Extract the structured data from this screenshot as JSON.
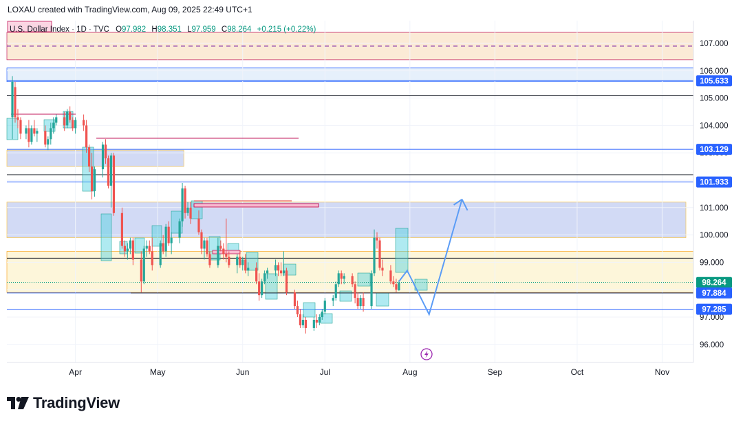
{
  "header": {
    "creator_text": "LOXAU created with TradingView.com, Aug 09, 2025 22:49 UTC+1"
  },
  "legend": {
    "symbol": "U.S. Dollar Index · 1D · TVC",
    "open_label": "O",
    "open": "97.982",
    "high_label": "H",
    "high": "98.351",
    "low_label": "L",
    "low": "97.959",
    "close_label": "C",
    "close": "98.264",
    "change": "+0.215 (+0.22%)"
  },
  "footer": {
    "brand": "TradingView"
  },
  "colors": {
    "up": "#26a69a",
    "down": "#ef5350",
    "zone_blue": "#cdd6f4",
    "zone_yellow": "#fdf5d6",
    "zone_peach": "#fbe8d2",
    "tag_green": "#089981",
    "tag_blue": "#2962ff",
    "arrow": "#5b9cf6"
  },
  "chart_data": {
    "type": "candlestick",
    "title": "U.S. Dollar Index · 1D · TVC",
    "timeframe": "1D",
    "ylim": [
      95.3,
      107.6
    ],
    "y_ticks": [
      "96.000",
      "97.000",
      "98.000",
      "99.000",
      "100.000",
      "101.000",
      "102.000",
      "103.000",
      "104.000",
      "105.000",
      "106.000",
      "107.000"
    ],
    "x_ticks": [
      {
        "label": "Apr",
        "day": 23
      },
      {
        "label": "May",
        "day": 53
      },
      {
        "label": "Jun",
        "day": 84
      },
      {
        "label": "Jul",
        "day": 114
      },
      {
        "label": "Aug",
        "day": 145
      },
      {
        "label": "Sep",
        "day": 176
      },
      {
        "label": "Oct",
        "day": 206
      },
      {
        "label": "Nov",
        "day": 237
      }
    ],
    "candles": [
      {
        "day": 0,
        "o": 104.3,
        "h": 105.8,
        "l": 103.5,
        "c": 105.6
      },
      {
        "day": 1,
        "o": 105.4,
        "h": 105.6,
        "l": 104.1,
        "c": 104.3
      },
      {
        "day": 2,
        "o": 104.3,
        "h": 104.6,
        "l": 103.9,
        "c": 104.2
      },
      {
        "day": 3,
        "o": 104.2,
        "h": 104.3,
        "l": 103.5,
        "c": 103.7
      },
      {
        "day": 5,
        "o": 103.7,
        "h": 104.0,
        "l": 103.5,
        "c": 103.9
      },
      {
        "day": 6,
        "o": 103.9,
        "h": 104.2,
        "l": 103.2,
        "c": 103.4
      },
      {
        "day": 7,
        "o": 103.4,
        "h": 104.0,
        "l": 103.3,
        "c": 103.9
      },
      {
        "day": 8,
        "o": 103.9,
        "h": 104.2,
        "l": 103.6,
        "c": 103.7
      },
      {
        "day": 9,
        "o": 103.7,
        "h": 103.9,
        "l": 103.4,
        "c": 103.8
      },
      {
        "day": 12,
        "o": 103.8,
        "h": 104.0,
        "l": 103.2,
        "c": 103.3
      },
      {
        "day": 13,
        "o": 103.3,
        "h": 103.6,
        "l": 103.1,
        "c": 103.5
      },
      {
        "day": 14,
        "o": 103.5,
        "h": 104.1,
        "l": 103.3,
        "c": 103.9
      },
      {
        "day": 15,
        "o": 103.9,
        "h": 104.3,
        "l": 103.7,
        "c": 104.1
      },
      {
        "day": 16,
        "o": 104.1,
        "h": 104.4,
        "l": 104.0,
        "c": 104.3
      },
      {
        "day": 19,
        "o": 104.3,
        "h": 104.5,
        "l": 103.8,
        "c": 104.0
      },
      {
        "day": 20,
        "o": 104.0,
        "h": 104.6,
        "l": 103.9,
        "c": 104.5
      },
      {
        "day": 21,
        "o": 104.5,
        "h": 104.7,
        "l": 104.1,
        "c": 104.2
      },
      {
        "day": 22,
        "o": 104.2,
        "h": 104.3,
        "l": 103.8,
        "c": 103.9
      },
      {
        "day": 23,
        "o": 103.9,
        "h": 104.3,
        "l": 103.7,
        "c": 104.2
      },
      {
        "day": 26,
        "o": 104.2,
        "h": 104.4,
        "l": 103.8,
        "c": 104.0
      },
      {
        "day": 27,
        "o": 104.0,
        "h": 104.2,
        "l": 103.0,
        "c": 103.2
      },
      {
        "day": 28,
        "o": 103.2,
        "h": 103.3,
        "l": 102.3,
        "c": 102.5
      },
      {
        "day": 29,
        "o": 102.5,
        "h": 103.0,
        "l": 101.3,
        "c": 101.6
      },
      {
        "day": 30,
        "o": 101.6,
        "h": 102.5,
        "l": 101.4,
        "c": 102.4
      },
      {
        "day": 33,
        "o": 102.4,
        "h": 103.4,
        "l": 102.1,
        "c": 103.3
      },
      {
        "day": 34,
        "o": 103.3,
        "h": 103.5,
        "l": 102.6,
        "c": 102.8
      },
      {
        "day": 35,
        "o": 102.8,
        "h": 102.9,
        "l": 101.7,
        "c": 101.8
      },
      {
        "day": 36,
        "o": 101.8,
        "h": 103.0,
        "l": 101.0,
        "c": 102.9
      },
      {
        "day": 37,
        "o": 102.9,
        "h": 103.0,
        "l": 100.7,
        "c": 100.8
      },
      {
        "day": 40,
        "o": 100.8,
        "h": 101.0,
        "l": 99.5,
        "c": 99.6
      },
      {
        "day": 41,
        "o": 99.6,
        "h": 99.8,
        "l": 99.2,
        "c": 99.4
      },
      {
        "day": 42,
        "o": 99.4,
        "h": 99.7,
        "l": 99.1,
        "c": 99.5
      },
      {
        "day": 43,
        "o": 99.5,
        "h": 99.9,
        "l": 99.3,
        "c": 99.8
      },
      {
        "day": 44,
        "o": 99.8,
        "h": 99.9,
        "l": 98.9,
        "c": 99.1
      },
      {
        "day": 47,
        "o": 99.1,
        "h": 99.4,
        "l": 97.9,
        "c": 98.3
      },
      {
        "day": 48,
        "o": 98.3,
        "h": 99.6,
        "l": 98.2,
        "c": 99.5
      },
      {
        "day": 49,
        "o": 99.5,
        "h": 99.8,
        "l": 99.2,
        "c": 99.6
      },
      {
        "day": 50,
        "o": 99.6,
        "h": 99.8,
        "l": 99.3,
        "c": 99.4
      },
      {
        "day": 51,
        "o": 99.4,
        "h": 99.9,
        "l": 98.7,
        "c": 98.9
      },
      {
        "day": 54,
        "o": 98.9,
        "h": 99.8,
        "l": 98.8,
        "c": 99.7
      },
      {
        "day": 55,
        "o": 99.7,
        "h": 100.0,
        "l": 99.3,
        "c": 99.4
      },
      {
        "day": 56,
        "o": 99.4,
        "h": 100.4,
        "l": 99.2,
        "c": 100.3
      },
      {
        "day": 57,
        "o": 100.3,
        "h": 100.5,
        "l": 99.6,
        "c": 99.7
      },
      {
        "day": 58,
        "o": 99.7,
        "h": 100.1,
        "l": 99.3,
        "c": 99.9
      },
      {
        "day": 61,
        "o": 99.9,
        "h": 100.6,
        "l": 99.7,
        "c": 100.5
      },
      {
        "day": 62,
        "o": 100.5,
        "h": 101.9,
        "l": 100.3,
        "c": 101.7
      },
      {
        "day": 63,
        "o": 101.7,
        "h": 101.8,
        "l": 100.6,
        "c": 100.8
      },
      {
        "day": 64,
        "o": 100.8,
        "h": 101.2,
        "l": 100.7,
        "c": 101.0
      },
      {
        "day": 65,
        "o": 101.0,
        "h": 101.2,
        "l": 100.4,
        "c": 100.6
      },
      {
        "day": 68,
        "o": 100.6,
        "h": 100.9,
        "l": 100.0,
        "c": 100.1
      },
      {
        "day": 69,
        "o": 100.1,
        "h": 100.2,
        "l": 99.3,
        "c": 99.5
      },
      {
        "day": 70,
        "o": 99.5,
        "h": 99.9,
        "l": 99.1,
        "c": 99.8
      },
      {
        "day": 71,
        "o": 99.8,
        "h": 99.9,
        "l": 99.2,
        "c": 99.3
      },
      {
        "day": 72,
        "o": 99.3,
        "h": 99.4,
        "l": 98.8,
        "c": 98.9
      },
      {
        "day": 75,
        "o": 98.9,
        "h": 99.9,
        "l": 98.8,
        "c": 99.6
      },
      {
        "day": 76,
        "o": 99.6,
        "h": 99.8,
        "l": 99.4,
        "c": 99.5
      },
      {
        "day": 77,
        "o": 99.5,
        "h": 99.7,
        "l": 99.1,
        "c": 99.3
      },
      {
        "day": 78,
        "o": 99.3,
        "h": 100.6,
        "l": 99.0,
        "c": 99.2
      },
      {
        "day": 79,
        "o": 99.2,
        "h": 99.4,
        "l": 98.8,
        "c": 98.9
      },
      {
        "day": 82,
        "o": 98.9,
        "h": 99.3,
        "l": 98.6,
        "c": 99.2
      },
      {
        "day": 83,
        "o": 99.2,
        "h": 99.4,
        "l": 98.8,
        "c": 98.9
      },
      {
        "day": 84,
        "o": 98.9,
        "h": 99.2,
        "l": 98.7,
        "c": 99.1
      },
      {
        "day": 85,
        "o": 99.1,
        "h": 99.3,
        "l": 98.6,
        "c": 98.7
      },
      {
        "day": 86,
        "o": 98.7,
        "h": 99.0,
        "l": 98.5,
        "c": 98.8
      },
      {
        "day": 89,
        "o": 98.8,
        "h": 99.0,
        "l": 98.2,
        "c": 98.3
      },
      {
        "day": 90,
        "o": 98.3,
        "h": 98.6,
        "l": 97.6,
        "c": 97.8
      },
      {
        "day": 91,
        "o": 97.8,
        "h": 98.4,
        "l": 97.7,
        "c": 98.3
      },
      {
        "day": 92,
        "o": 98.3,
        "h": 98.7,
        "l": 98.2,
        "c": 98.6
      },
      {
        "day": 93,
        "o": 98.6,
        "h": 98.8,
        "l": 98.4,
        "c": 98.7
      },
      {
        "day": 96,
        "o": 98.7,
        "h": 99.1,
        "l": 98.5,
        "c": 98.9
      },
      {
        "day": 97,
        "o": 98.9,
        "h": 99.0,
        "l": 98.5,
        "c": 98.7
      },
      {
        "day": 98,
        "o": 98.7,
        "h": 99.0,
        "l": 98.5,
        "c": 98.6
      },
      {
        "day": 99,
        "o": 98.6,
        "h": 99.4,
        "l": 98.5,
        "c": 98.7
      },
      {
        "day": 100,
        "o": 98.7,
        "h": 98.8,
        "l": 97.8,
        "c": 97.9
      },
      {
        "day": 103,
        "o": 97.9,
        "h": 98.0,
        "l": 97.3,
        "c": 97.4
      },
      {
        "day": 104,
        "o": 97.4,
        "h": 97.6,
        "l": 97.0,
        "c": 97.1
      },
      {
        "day": 105,
        "o": 97.1,
        "h": 97.3,
        "l": 96.6,
        "c": 96.7
      },
      {
        "day": 106,
        "o": 96.7,
        "h": 97.1,
        "l": 96.6,
        "c": 96.9
      },
      {
        "day": 107,
        "o": 96.9,
        "h": 97.0,
        "l": 96.4,
        "c": 96.6
      },
      {
        "day": 110,
        "o": 96.6,
        "h": 97.0,
        "l": 96.5,
        "c": 96.9
      },
      {
        "day": 111,
        "o": 96.9,
        "h": 97.1,
        "l": 96.6,
        "c": 96.8
      },
      {
        "day": 112,
        "o": 96.8,
        "h": 97.1,
        "l": 96.7,
        "c": 97.0
      },
      {
        "day": 113,
        "o": 97.0,
        "h": 97.3,
        "l": 96.9,
        "c": 97.2
      },
      {
        "day": 114,
        "o": 97.2,
        "h": 97.7,
        "l": 97.1,
        "c": 97.6
      },
      {
        "day": 117,
        "o": 97.6,
        "h": 97.8,
        "l": 97.4,
        "c": 97.7
      },
      {
        "day": 118,
        "o": 97.7,
        "h": 98.3,
        "l": 97.6,
        "c": 98.2
      },
      {
        "day": 119,
        "o": 98.2,
        "h": 98.7,
        "l": 98.1,
        "c": 98.6
      },
      {
        "day": 120,
        "o": 98.6,
        "h": 98.7,
        "l": 98.2,
        "c": 98.4
      },
      {
        "day": 121,
        "o": 98.4,
        "h": 98.6,
        "l": 98.2,
        "c": 98.5
      },
      {
        "day": 124,
        "o": 98.5,
        "h": 98.6,
        "l": 98.1,
        "c": 98.2
      },
      {
        "day": 125,
        "o": 98.2,
        "h": 98.3,
        "l": 97.5,
        "c": 97.7
      },
      {
        "day": 126,
        "o": 97.7,
        "h": 97.9,
        "l": 97.3,
        "c": 97.4
      },
      {
        "day": 127,
        "o": 97.4,
        "h": 97.8,
        "l": 97.3,
        "c": 97.7
      },
      {
        "day": 128,
        "o": 97.7,
        "h": 97.9,
        "l": 97.2,
        "c": 97.4
      },
      {
        "day": 131,
        "o": 97.4,
        "h": 98.7,
        "l": 97.3,
        "c": 98.6
      },
      {
        "day": 132,
        "o": 98.6,
        "h": 100.2,
        "l": 98.5,
        "c": 99.9
      },
      {
        "day": 133,
        "o": 99.9,
        "h": 100.1,
        "l": 99.5,
        "c": 99.8
      },
      {
        "day": 134,
        "o": 99.8,
        "h": 99.9,
        "l": 98.7,
        "c": 98.8
      },
      {
        "day": 135,
        "o": 98.8,
        "h": 99.1,
        "l": 98.5,
        "c": 98.7
      },
      {
        "day": 138,
        "o": 98.7,
        "h": 98.9,
        "l": 98.2,
        "c": 98.3
      },
      {
        "day": 139,
        "o": 98.3,
        "h": 98.5,
        "l": 98.1,
        "c": 98.2
      },
      {
        "day": 140,
        "o": 98.2,
        "h": 98.4,
        "l": 97.9,
        "c": 98.0
      },
      {
        "day": 141,
        "o": 97.98,
        "h": 98.351,
        "l": 97.959,
        "c": 98.264
      }
    ],
    "zones": [
      {
        "name": "resistance-zone-top",
        "from": 106.4,
        "to": 107.4,
        "color": "peach",
        "start_day": 0
      },
      {
        "name": "supply-zone-106",
        "from": 105.6,
        "to": 106.1,
        "color": "lightblue",
        "start_day": 0
      },
      {
        "name": "supply-zone-103",
        "from": 102.5,
        "to": 103.1,
        "color": "blue",
        "start_day": 0,
        "end_day": 55
      },
      {
        "name": "demand-zone-101",
        "from": 99.9,
        "to": 101.2,
        "color": "blue",
        "start_day": 0
      },
      {
        "name": "support-zone-98",
        "from": 97.9,
        "to": 99.4,
        "color": "yellow",
        "start_day": 0
      }
    ],
    "levels": [
      {
        "name": "level-107-dashed",
        "price": 106.9,
        "style": "dashed",
        "color": "#7b1fa2"
      },
      {
        "name": "level-105-633",
        "price": 105.633,
        "color": "#2962ff"
      },
      {
        "name": "level-105-1",
        "price": 105.1,
        "color": "#131722"
      },
      {
        "name": "level-103-129",
        "price": 103.129,
        "color": "#2962ff"
      },
      {
        "name": "level-102-2",
        "price": 102.2,
        "color": "#131722"
      },
      {
        "name": "level-101-933",
        "price": 101.933,
        "color": "#2962ff"
      },
      {
        "name": "level-99-15",
        "price": 99.15,
        "color": "#131722"
      },
      {
        "name": "level-97-884",
        "price": 97.884,
        "color": "#2962ff"
      },
      {
        "name": "level-97-285",
        "price": 97.285,
        "color": "#2962ff"
      }
    ],
    "price_tags": [
      {
        "price": 105.633,
        "label": "105.633",
        "color": "#2962ff"
      },
      {
        "price": 103.129,
        "label": "103.129",
        "color": "#2962ff"
      },
      {
        "price": 101.933,
        "label": "101.933",
        "color": "#2962ff"
      },
      {
        "price": 98.264,
        "label": "98.264",
        "color": "#089981"
      },
      {
        "price": 97.884,
        "label": "97.884",
        "color": "#2962ff"
      },
      {
        "price": 97.285,
        "label": "97.285",
        "color": "#2962ff"
      }
    ],
    "projection": {
      "points": [
        {
          "day": 141,
          "price": 98.3
        },
        {
          "day": 144,
          "price": 98.7
        },
        {
          "day": 152,
          "price": 97.1
        },
        {
          "day": 164,
          "price": 101.3
        },
        {
          "day": 166,
          "price": 100.9
        }
      ],
      "color": "#5b9cf6"
    }
  }
}
